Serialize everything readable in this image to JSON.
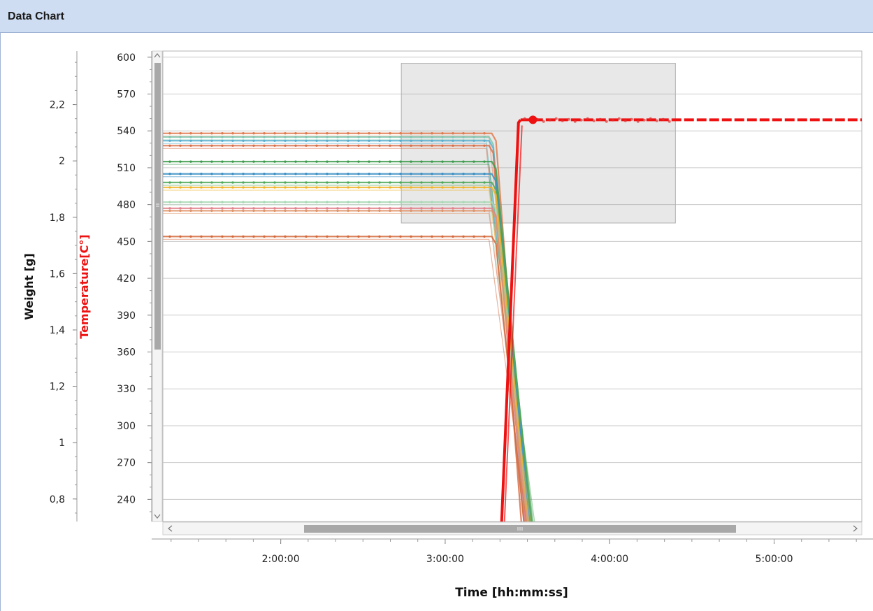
{
  "panel": {
    "title": "Data Chart"
  },
  "chart_data": {
    "type": "line",
    "xlabel": "Time [hh:mm:ss]",
    "ylabel_left": "Weight [g]",
    "ylabel_temperature": "Temperature[C°]",
    "x_range": [
      "1:17:00",
      "5:32:00"
    ],
    "x_ticks": [
      "2:00:00",
      "3:00:00",
      "4:00:00",
      "5:00:00"
    ],
    "weight_axis": {
      "range": [
        0.72,
        2.39
      ],
      "ticks": [
        "0.8",
        "1",
        "1.2",
        "1.4",
        "1.6",
        "1.8",
        "2",
        "2.2"
      ]
    },
    "temperature_axis": {
      "range": [
        222,
        605
      ],
      "ticks": [
        "240",
        "270",
        "300",
        "330",
        "360",
        "390",
        "420",
        "450",
        "480",
        "510",
        "540",
        "570",
        "600"
      ]
    },
    "grid": true,
    "selection_region": {
      "x": [
        "2:44:00",
        "4:24:00"
      ],
      "temperature": [
        465,
        595
      ]
    },
    "series": [
      {
        "color": "#e07b4f",
        "level": 538,
        "drop": [
          "3:17:00",
          "3:29:30"
        ]
      },
      {
        "color": "#7ec8b0",
        "level": 535,
        "drop": [
          "3:16:00",
          "3:29:00"
        ]
      },
      {
        "color": "#5aafcf",
        "level": 532,
        "drop": [
          "3:16:00",
          "3:30:30"
        ]
      },
      {
        "color": "#d9704a",
        "level": 528,
        "drop": [
          "3:16:00",
          "3:28:00"
        ]
      },
      {
        "color": "#3e9b4e",
        "level": 515,
        "drop": [
          "3:17:00",
          "3:31:30"
        ]
      },
      {
        "color": "#3a8fc4",
        "level": 505,
        "drop": [
          "3:17:00",
          "3:31:00"
        ]
      },
      {
        "color": "#4fa85a",
        "level": 498,
        "drop": [
          "3:17:00",
          "3:32:00"
        ]
      },
      {
        "color": "#f0b428",
        "level": 494,
        "drop": [
          "3:17:00",
          "3:30:30"
        ]
      },
      {
        "color": "#a7d8b3",
        "level": 482,
        "drop": [
          "3:17:00",
          "3:30:00"
        ]
      },
      {
        "color": "#e1848e",
        "level": 477,
        "drop": [
          "3:17:00",
          "3:29:30"
        ]
      },
      {
        "color": "#e0956a",
        "level": 475,
        "drop": [
          "3:17:00",
          "3:30:00"
        ]
      },
      {
        "color": "#d46a3c",
        "level": 454,
        "drop": [
          "3:17:00",
          "3:29:00"
        ]
      }
    ],
    "temperature_series": {
      "color": "#ee1111",
      "start": [
        "3:20:30",
        222
      ],
      "rise_end": [
        "3:27:30",
        549
      ],
      "marker": [
        "3:32:00",
        549
      ],
      "level": 549
    }
  }
}
